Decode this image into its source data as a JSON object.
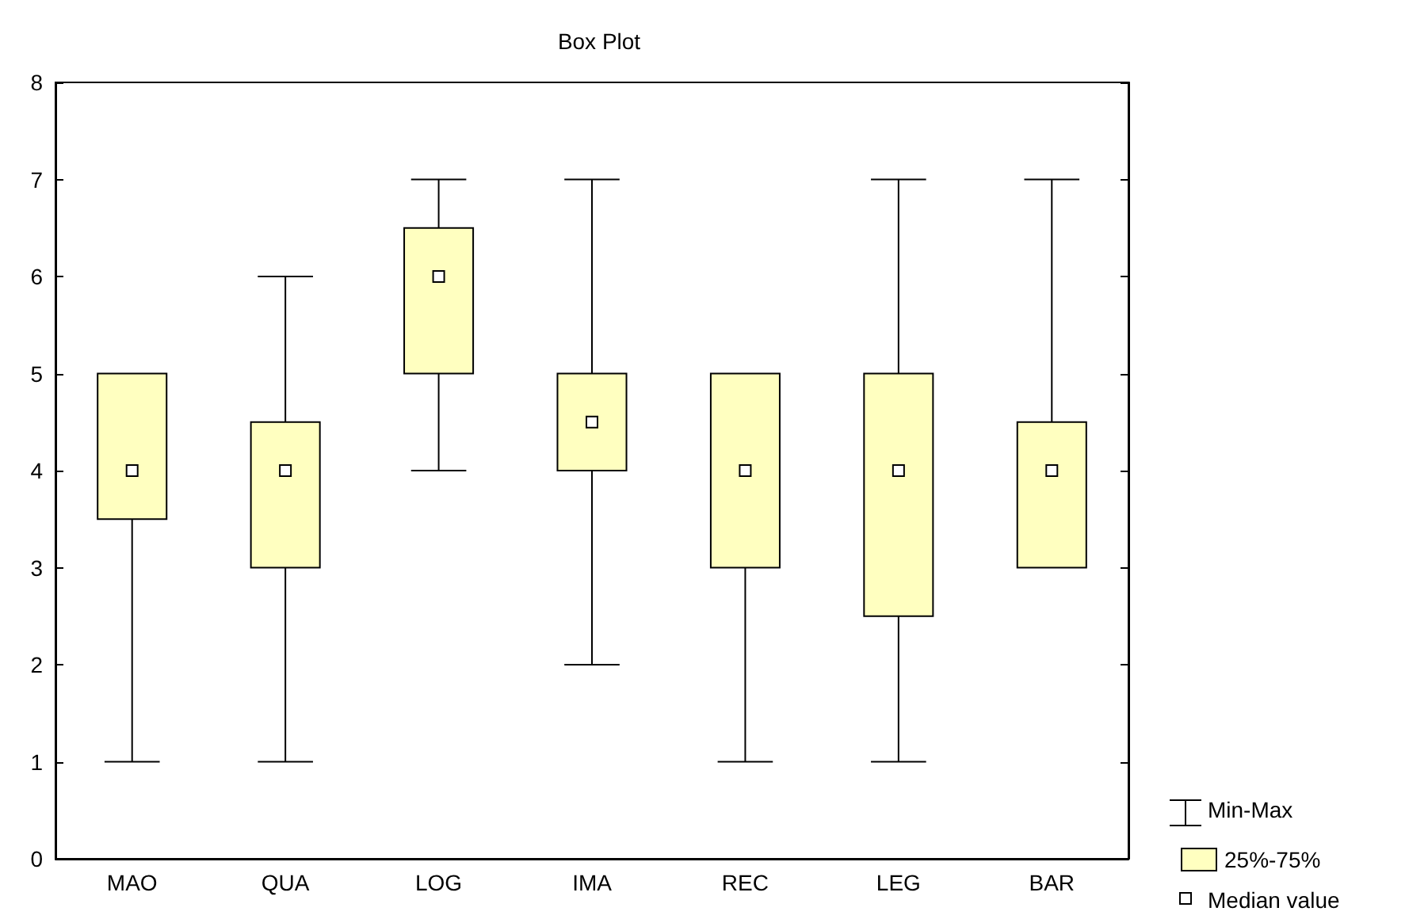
{
  "chart_data": {
    "type": "box",
    "title": "Box Plot",
    "categories": [
      "MAO",
      "QUA",
      "LOG",
      "IMA",
      "REC",
      "LEG",
      "BAR"
    ],
    "ylim": [
      0,
      8
    ],
    "yticks": [
      0,
      1,
      2,
      3,
      4,
      5,
      6,
      7,
      8
    ],
    "grid": false,
    "legend": "bottom right",
    "annotations": [
      "Min-Max",
      "Median value"
    ],
    "series": [
      {
        "name": "25%-75%",
        "color": "#ffffc0",
        "boxes": [
          {
            "low": 1,
            "q1": 3.5,
            "median": 4,
            "q3": 5,
            "high": 5
          },
          {
            "low": 1,
            "q1": 3,
            "median": 4,
            "q3": 4.5,
            "high": 6
          },
          {
            "low": 4,
            "q1": 5,
            "median": 6,
            "q3": 6.5,
            "high": 7
          },
          {
            "low": 2,
            "q1": 4,
            "median": 4.5,
            "q3": 5,
            "high": 7
          },
          {
            "low": 1,
            "q1": 3,
            "median": 4,
            "q3": 5,
            "high": 5
          },
          {
            "low": 1,
            "q1": 2.5,
            "median": 4,
            "q3": 5,
            "high": 7
          },
          {
            "low": 3,
            "q1": 3,
            "median": 4,
            "q3": 4.5,
            "high": 7
          }
        ]
      }
    ]
  }
}
